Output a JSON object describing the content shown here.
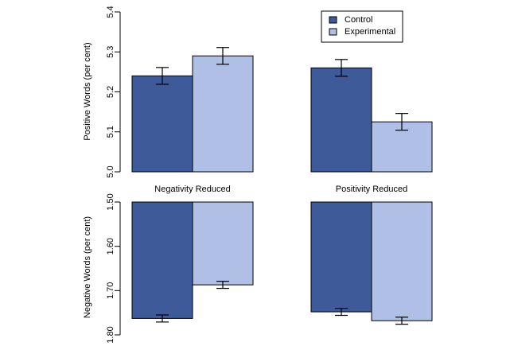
{
  "chart_data": [
    {
      "type": "bar",
      "panel": "top",
      "ylabel": "Positive Words (per cent)",
      "ylim": [
        5.0,
        5.4
      ],
      "yticks": [
        5.0,
        5.1,
        5.2,
        5.3,
        5.4
      ],
      "tick_labels": [
        "5.0",
        "5.1",
        "5.2",
        "5.3",
        "5.4"
      ],
      "categories": [
        "Negativity Reduced",
        "Positivity Reduced"
      ],
      "series": [
        {
          "name": "Control",
          "color": "#3e5a99",
          "values": [
            5.24,
            5.26
          ],
          "errors": [
            0.021,
            0.021
          ]
        },
        {
          "name": "Experimental",
          "color": "#afbfe6",
          "values": [
            5.29,
            5.125
          ],
          "errors": [
            0.021,
            0.021
          ]
        }
      ],
      "legend": {
        "position": "top-right",
        "entries": [
          "Control",
          "Experimental"
        ]
      }
    },
    {
      "type": "bar",
      "panel": "bottom",
      "ylabel": "Negative Words (per cent)",
      "ylim": [
        1.5,
        1.8
      ],
      "y_inverted": true,
      "yticks": [
        1.5,
        1.6,
        1.7,
        1.8
      ],
      "tick_labels": [
        "1.50",
        "1.60",
        "1.70",
        "1.80"
      ],
      "categories": [
        "Negativity Reduced",
        "Positivity Reduced"
      ],
      "series": [
        {
          "name": "Control",
          "color": "#3e5a99",
          "values": [
            1.763,
            1.748
          ],
          "errors": [
            0.008,
            0.008
          ]
        },
        {
          "name": "Experimental",
          "color": "#afbfe6",
          "values": [
            1.687,
            1.768
          ],
          "errors": [
            0.008,
            0.008
          ]
        }
      ]
    }
  ]
}
